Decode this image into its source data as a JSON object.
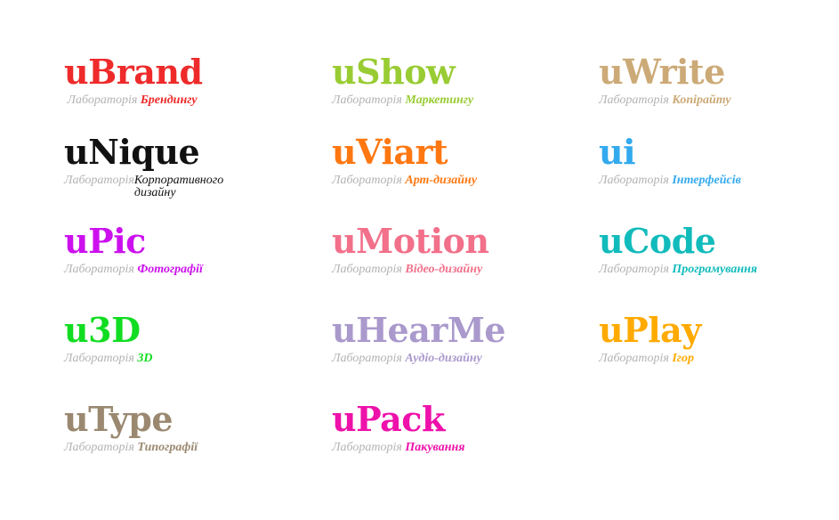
{
  "lab_prefix": "Лабораторія",
  "brands": [
    {
      "name": "uBrand",
      "spec": "Брендингу",
      "color": "#ee2a2a"
    },
    {
      "name": "uShow",
      "spec": "Маркетингу",
      "color": "#99cc33"
    },
    {
      "name": "uWrite",
      "spec": "Копірайту",
      "color": "#ccaa77"
    },
    {
      "name": "uNique",
      "spec": "Корпоративного дизайну",
      "color": "#111111"
    },
    {
      "name": "uViart",
      "spec": "Арт-дизайну",
      "color": "#ff7711"
    },
    {
      "name": "ui",
      "spec": "Інтерфейсів",
      "color": "#33aaee"
    },
    {
      "name": "uPic",
      "spec": "Фотографії",
      "color": "#cc11ee"
    },
    {
      "name": "uMotion",
      "spec": "Відео-дизайну",
      "color": "#f2708a"
    },
    {
      "name": "uCode",
      "spec": "Програмування",
      "color": "#11bbbb"
    },
    {
      "name": "u3D",
      "spec": "3D",
      "color": "#11dd22"
    },
    {
      "name": "uHearMe",
      "spec": "Аудіо-дизайну",
      "color": "#aa99cc"
    },
    {
      "name": "uPlay",
      "spec": "Ігор",
      "color": "#ffaa00"
    },
    {
      "name": "uType",
      "spec": "Типографії",
      "color": "#9a8870"
    },
    {
      "name": "uPack",
      "spec": "Пакування",
      "color": "#ee11aa"
    }
  ]
}
